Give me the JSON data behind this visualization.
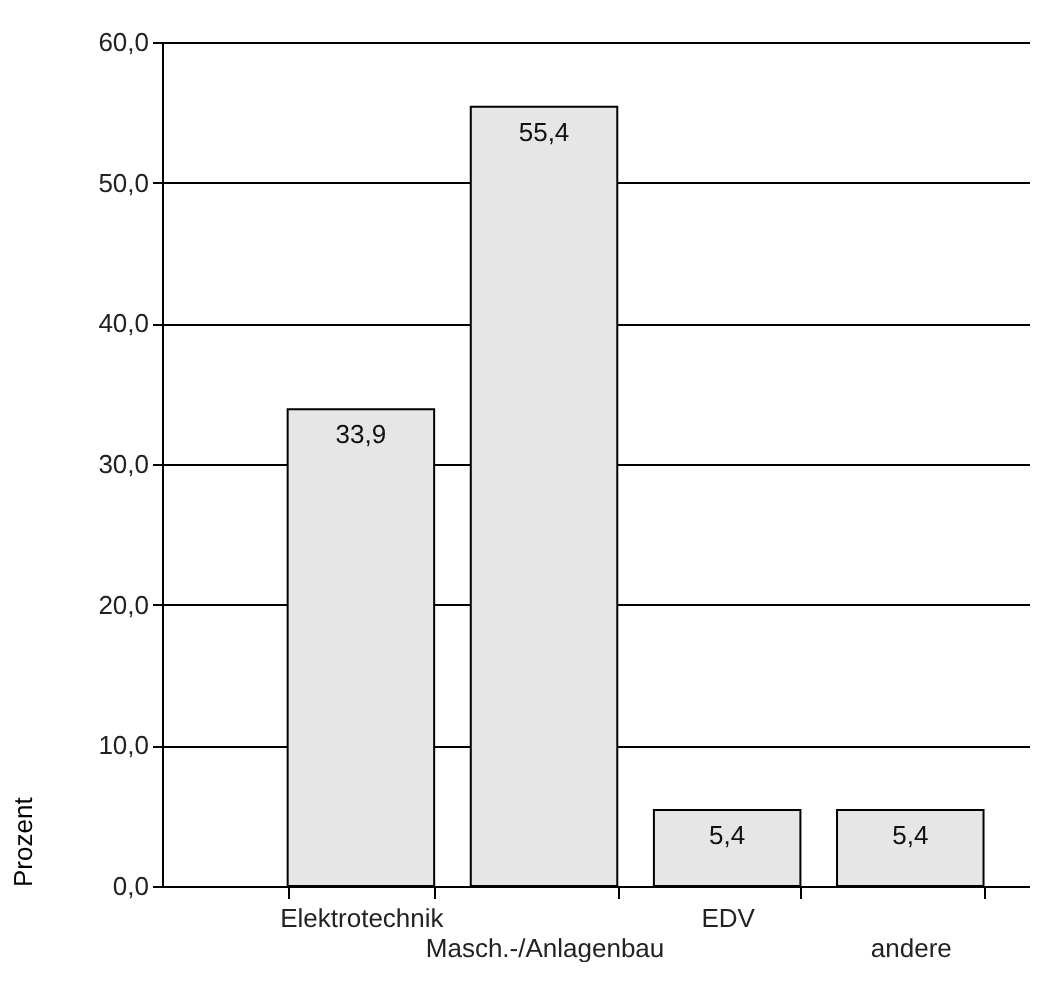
{
  "chart_data": {
    "type": "bar",
    "ylabel": "Prozent",
    "categories": [
      "Elektrotechnik",
      "Masch.-/Anlagenbau",
      "EDV",
      "andere"
    ],
    "values": [
      33.9,
      55.4,
      5.4,
      5.4
    ],
    "value_labels": [
      "33,9",
      "55,4",
      "5,4",
      "5,4"
    ],
    "color": "#e6e6e6",
    "ylim": [
      0,
      60
    ],
    "yticks": [
      {
        "value": 0,
        "label": "0,0"
      },
      {
        "value": 10,
        "label": "10,0"
      },
      {
        "value": 20,
        "label": "20,0"
      },
      {
        "value": 30,
        "label": "30,0"
      },
      {
        "value": 40,
        "label": "40,0"
      },
      {
        "value": 50,
        "label": "50,0"
      },
      {
        "value": 60,
        "label": "60,0"
      }
    ],
    "grid": true
  }
}
